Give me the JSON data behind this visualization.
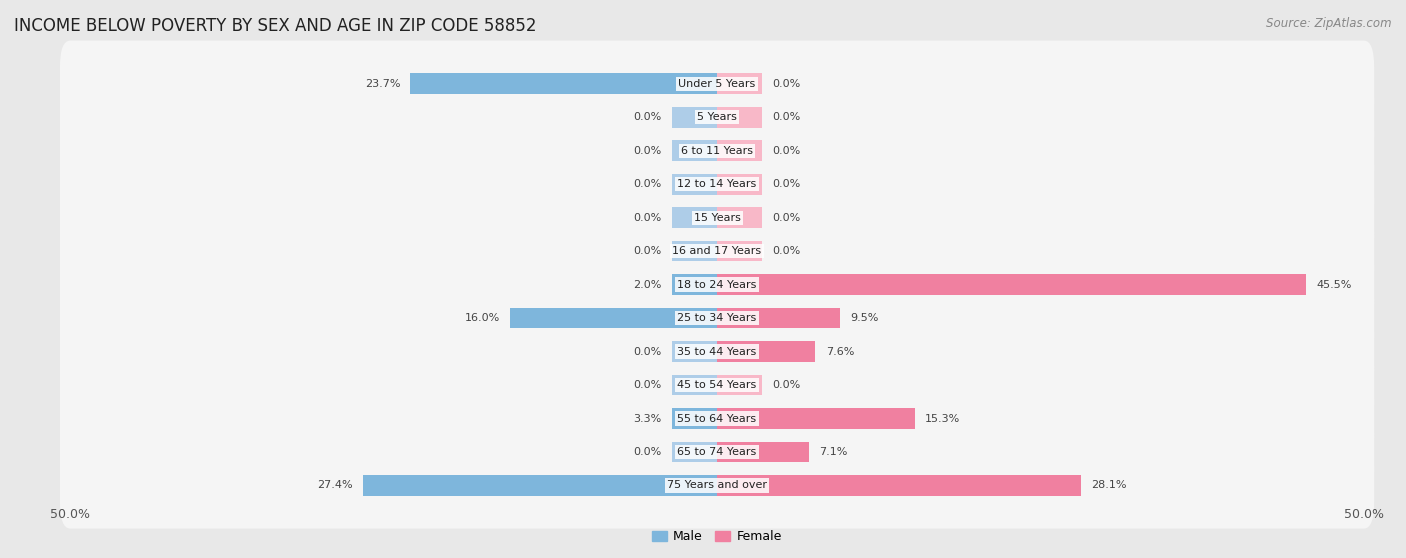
{
  "title": "INCOME BELOW POVERTY BY SEX AND AGE IN ZIP CODE 58852",
  "source": "Source: ZipAtlas.com",
  "categories": [
    "Under 5 Years",
    "5 Years",
    "6 to 11 Years",
    "12 to 14 Years",
    "15 Years",
    "16 and 17 Years",
    "18 to 24 Years",
    "25 to 34 Years",
    "35 to 44 Years",
    "45 to 54 Years",
    "55 to 64 Years",
    "65 to 74 Years",
    "75 Years and over"
  ],
  "male_values": [
    23.7,
    0.0,
    0.0,
    0.0,
    0.0,
    0.0,
    2.0,
    16.0,
    0.0,
    0.0,
    3.3,
    0.0,
    27.4
  ],
  "female_values": [
    0.0,
    0.0,
    0.0,
    0.0,
    0.0,
    0.0,
    45.5,
    9.5,
    7.6,
    0.0,
    15.3,
    7.1,
    28.1
  ],
  "male_color": "#7EB6DC",
  "female_color": "#F080A0",
  "male_color_light": "#AECDE8",
  "female_color_light": "#F8B8C8",
  "axis_max": 50.0,
  "title_fontsize": 12,
  "source_fontsize": 8.5,
  "label_fontsize": 8,
  "value_fontsize": 8,
  "tick_fontsize": 9,
  "background_color": "#e8e8e8",
  "bar_background_color": "#f5f5f5",
  "bar_height": 0.62,
  "min_bar_width": 3.5,
  "legend_male_label": "Male",
  "legend_female_label": "Female"
}
